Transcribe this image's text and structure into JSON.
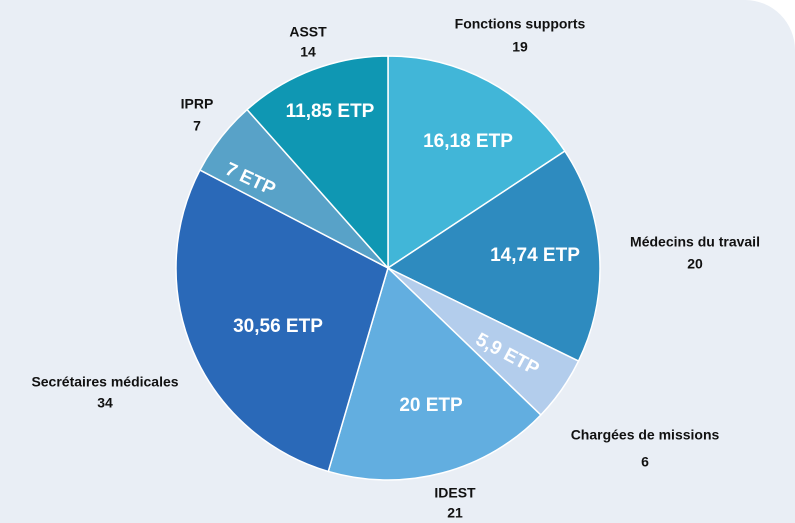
{
  "chart_data": {
    "type": "pie",
    "categories": [
      "Fonctions supports",
      "Médecins du travail",
      "Chargées de missions",
      "IDEST",
      "Secrétaires médicales",
      "IPRP",
      "ASST"
    ],
    "values": [
      19,
      20,
      6,
      21,
      34,
      7,
      14
    ],
    "etp": [
      16.18,
      14.74,
      5.9,
      20,
      30.56,
      7,
      11.85
    ],
    "etp_labels": [
      "16,18 ETP",
      "14,74 ETP",
      "5,9 ETP",
      "20 ETP",
      "30,56 ETP",
      "7 ETP",
      "11,85 ETP"
    ],
    "colors": [
      "#41b6d8",
      "#2e8bbf",
      "#b3cdec",
      "#62aee0",
      "#2a69b8",
      "#58a2c8",
      "#0f97b3"
    ]
  }
}
